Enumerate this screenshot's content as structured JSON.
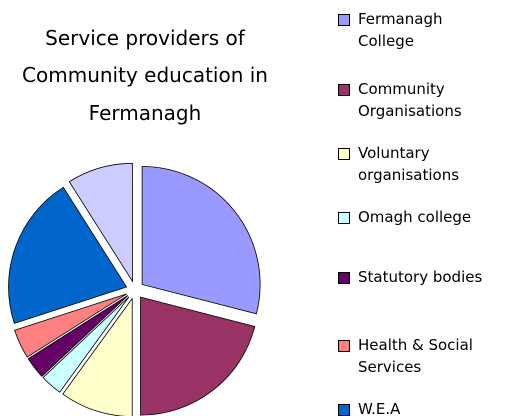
{
  "chart_data": {
    "type": "pie",
    "title": [
      "Service providers of",
      "Community education in",
      "Fermanagh"
    ],
    "categories": [
      "Fermanagh College",
      "Community Organisations",
      "Voluntary organisations",
      "Omagh college",
      "Statutory bodies",
      "Health & Social Services",
      "W.E.A",
      null
    ],
    "values": [
      29,
      21,
      10,
      3,
      3,
      4,
      21,
      9
    ],
    "colors": [
      "#9999ff",
      "#993366",
      "#ffffcc",
      "#ccffff",
      "#660066",
      "#ff8080",
      "#0066cc",
      "#ccccff"
    ],
    "legend": "right"
  }
}
